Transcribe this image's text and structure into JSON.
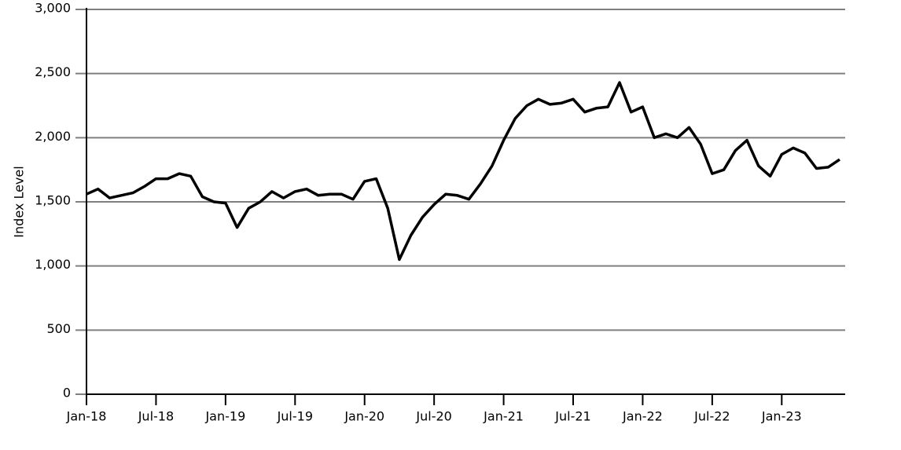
{
  "chart_data": {
    "type": "line",
    "y_label": "Index Level",
    "color": "#000000",
    "grid": true,
    "x": [
      "2018-01",
      "2018-02",
      "2018-03",
      "2018-04",
      "2018-05",
      "2018-06",
      "2018-07",
      "2018-08",
      "2018-09",
      "2018-10",
      "2018-11",
      "2018-12",
      "2019-01",
      "2019-02",
      "2019-03",
      "2019-04",
      "2019-05",
      "2019-06",
      "2019-07",
      "2019-08",
      "2019-09",
      "2019-10",
      "2019-11",
      "2019-12",
      "2020-01",
      "2020-02",
      "2020-03",
      "2020-04",
      "2020-05",
      "2020-06",
      "2020-07",
      "2020-08",
      "2020-09",
      "2020-10",
      "2020-11",
      "2020-12",
      "2021-01",
      "2021-02",
      "2021-03",
      "2021-04",
      "2021-05",
      "2021-06",
      "2021-07",
      "2021-08",
      "2021-09",
      "2021-10",
      "2021-11",
      "2021-12",
      "2022-01",
      "2022-02",
      "2022-03",
      "2022-04",
      "2022-05",
      "2022-06",
      "2022-07",
      "2022-08",
      "2022-09",
      "2022-10",
      "2022-11",
      "2022-12",
      "2023-01",
      "2023-02",
      "2023-03",
      "2023-04",
      "2023-05",
      "2023-06"
    ],
    "values": [
      1560,
      1600,
      1530,
      1550,
      1570,
      1620,
      1680,
      1680,
      1720,
      1700,
      1540,
      1500,
      1490,
      1300,
      1450,
      1500,
      1580,
      1530,
      1580,
      1600,
      1550,
      1560,
      1560,
      1520,
      1660,
      1680,
      1450,
      1050,
      1240,
      1380,
      1480,
      1560,
      1550,
      1520,
      1640,
      1780,
      1980,
      2150,
      2250,
      2300,
      2260,
      2270,
      2300,
      2200,
      2230,
      2240,
      2430,
      2200,
      2240,
      2000,
      2030,
      2000,
      2080,
      1950,
      1720,
      1750,
      1900,
      1980,
      1780,
      1700,
      1870,
      1920,
      1880,
      1760,
      1770,
      1830
    ],
    "xlim": [
      "2018-01",
      "2023-06"
    ],
    "xticks": [
      {
        "value": "2018-01",
        "label": "Jan-18"
      },
      {
        "value": "2018-07",
        "label": "Jul-18"
      },
      {
        "value": "2019-01",
        "label": "Jan-19"
      },
      {
        "value": "2019-07",
        "label": "Jul-19"
      },
      {
        "value": "2020-01",
        "label": "Jan-20"
      },
      {
        "value": "2020-07",
        "label": "Jul-20"
      },
      {
        "value": "2021-01",
        "label": "Jan-21"
      },
      {
        "value": "2021-07",
        "label": "Jul-21"
      },
      {
        "value": "2022-01",
        "label": "Jan-22"
      },
      {
        "value": "2022-07",
        "label": "Jul-22"
      },
      {
        "value": "2023-01",
        "label": "Jan-23"
      }
    ],
    "ylim": [
      0,
      3000
    ],
    "yticks": [
      0,
      500,
      {
        "value": 1000,
        "label": "1,000"
      },
      {
        "value": 1500,
        "label": "1,500"
      },
      {
        "value": 2000,
        "label": "2,000"
      },
      {
        "value": 2500,
        "label": "2,500"
      },
      {
        "value": 3000,
        "label": "3,000"
      }
    ]
  }
}
